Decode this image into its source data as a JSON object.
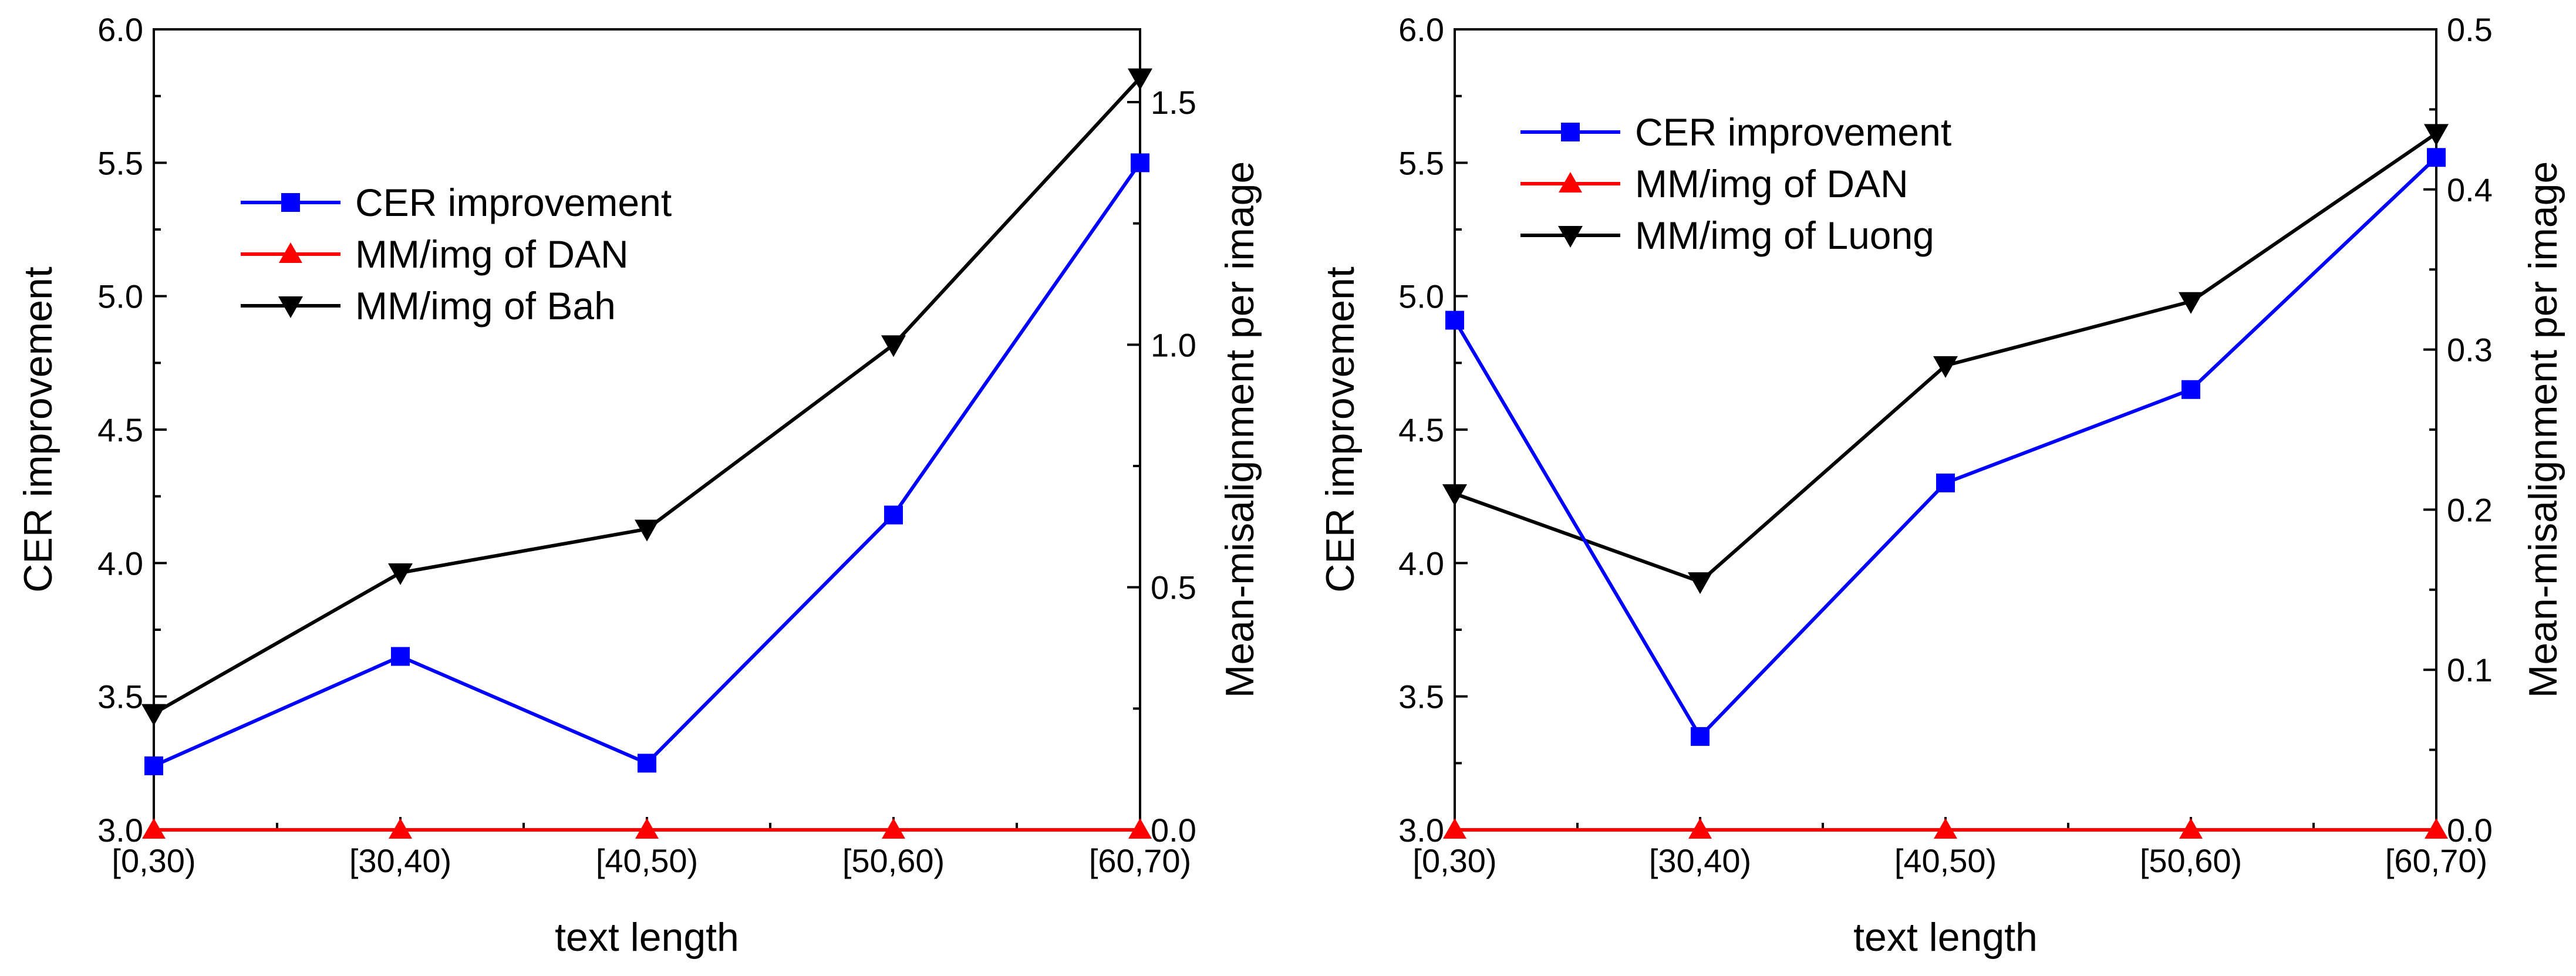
{
  "chart_data": [
    {
      "type": "line",
      "title": "",
      "xlabel": "text length",
      "ylabel": "CER improvement",
      "y2label": "Mean-misalignment per image",
      "categories": [
        "[0,30)",
        "[30,40)",
        "[40,50)",
        "[50,60)",
        "[60,70)"
      ],
      "ylim": [
        3.0,
        6.0
      ],
      "yticks": [
        "3.0",
        "3.5",
        "4.0",
        "4.5",
        "5.0",
        "5.5",
        "6.0"
      ],
      "y2lim": [
        0.0,
        1.65
      ],
      "y2ticks": [
        "0.0",
        "0.5",
        "1.0",
        "1.5"
      ],
      "legend_position": "upper-left",
      "series": [
        {
          "name": "CER improvement",
          "axis": "left",
          "marker": "square",
          "color": "#0000ff",
          "values": [
            3.24,
            3.65,
            3.25,
            4.18,
            5.5
          ]
        },
        {
          "name": "MM/img of DAN",
          "axis": "right",
          "marker": "triangle-up",
          "color": "#ff0000",
          "values": [
            0.0,
            0.0,
            0.0,
            0.0,
            0.0
          ]
        },
        {
          "name": "MM/img of Bah",
          "axis": "right",
          "marker": "triangle-down",
          "color": "#000000",
          "values": [
            0.24,
            0.53,
            0.62,
            1.0,
            1.55
          ]
        }
      ]
    },
    {
      "type": "line",
      "title": "",
      "xlabel": "text length",
      "ylabel": "CER improvement",
      "y2label": "Mean-misalignment per image",
      "categories": [
        "[0,30)",
        "[30,40)",
        "[40,50)",
        "[50,60)",
        "[60,70)"
      ],
      "ylim": [
        3.0,
        6.0
      ],
      "yticks": [
        "3.0",
        "3.5",
        "4.0",
        "4.5",
        "5.0",
        "5.5",
        "6.0"
      ],
      "y2lim": [
        0.0,
        0.5
      ],
      "y2ticks": [
        "0.0",
        "0.1",
        "0.2",
        "0.3",
        "0.4",
        "0.5"
      ],
      "legend_position": "upper-left",
      "series": [
        {
          "name": "CER improvement",
          "axis": "left",
          "marker": "square",
          "color": "#0000ff",
          "values": [
            4.91,
            3.35,
            4.3,
            4.65,
            5.52
          ]
        },
        {
          "name": "MM/img of DAN",
          "axis": "right",
          "marker": "triangle-up",
          "color": "#ff0000",
          "values": [
            0.0,
            0.0,
            0.0,
            0.0,
            0.0
          ]
        },
        {
          "name": "MM/img of Luong",
          "axis": "right",
          "marker": "triangle-down",
          "color": "#000000",
          "values": [
            0.21,
            0.155,
            0.29,
            0.33,
            0.435
          ]
        }
      ]
    }
  ]
}
